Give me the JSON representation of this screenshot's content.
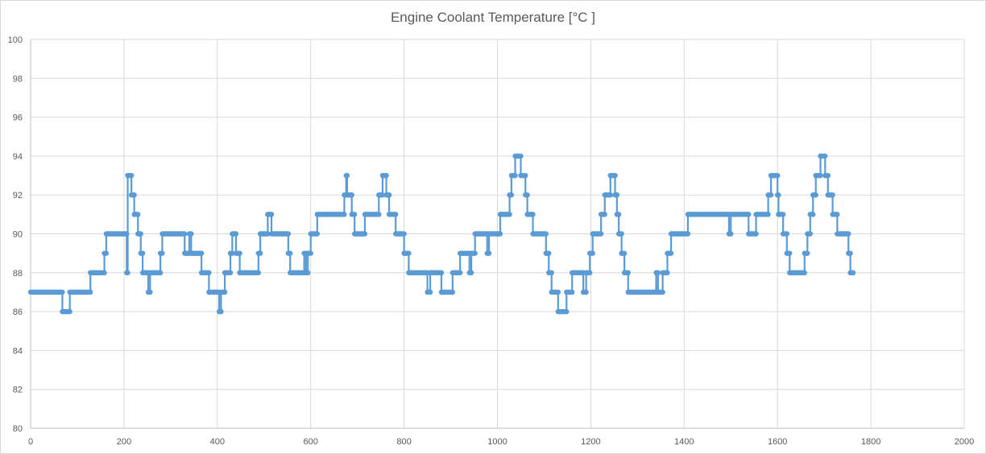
{
  "chart_data": {
    "type": "line",
    "title": "Engine Coolant Temperature [°C ]",
    "xlabel": "",
    "ylabel": "",
    "xlim": [
      0,
      2000
    ],
    "ylim": [
      80,
      100
    ],
    "x_ticks": [
      0,
      200,
      400,
      600,
      800,
      1000,
      1200,
      1400,
      1600,
      1800,
      2000
    ],
    "y_ticks": [
      80,
      82,
      84,
      86,
      88,
      90,
      92,
      94,
      96,
      98,
      100
    ],
    "grid": true,
    "legend": "none",
    "series": [
      {
        "color": "#5b9bd5",
        "marker": "circle",
        "points": [
          [
            0,
            87
          ],
          [
            68,
            87
          ],
          [
            68,
            86
          ],
          [
            84,
            86
          ],
          [
            84,
            87
          ],
          [
            128,
            87
          ],
          [
            128,
            88
          ],
          [
            158,
            88
          ],
          [
            158,
            89
          ],
          [
            162,
            89
          ],
          [
            162,
            90
          ],
          [
            206,
            90
          ],
          [
            206,
            88
          ],
          [
            208,
            88
          ],
          [
            208,
            93
          ],
          [
            216,
            93
          ],
          [
            216,
            92
          ],
          [
            222,
            92
          ],
          [
            222,
            91
          ],
          [
            230,
            91
          ],
          [
            230,
            90
          ],
          [
            236,
            90
          ],
          [
            236,
            89
          ],
          [
            240,
            89
          ],
          [
            240,
            88
          ],
          [
            252,
            88
          ],
          [
            252,
            87
          ],
          [
            256,
            87
          ],
          [
            256,
            88
          ],
          [
            278,
            88
          ],
          [
            278,
            89
          ],
          [
            282,
            89
          ],
          [
            282,
            90
          ],
          [
            330,
            90
          ],
          [
            330,
            89
          ],
          [
            340,
            89
          ],
          [
            340,
            90
          ],
          [
            344,
            90
          ],
          [
            344,
            89
          ],
          [
            366,
            89
          ],
          [
            366,
            88
          ],
          [
            382,
            88
          ],
          [
            382,
            87
          ],
          [
            404,
            87
          ],
          [
            404,
            86
          ],
          [
            408,
            86
          ],
          [
            408,
            87
          ],
          [
            416,
            87
          ],
          [
            416,
            88
          ],
          [
            428,
            88
          ],
          [
            428,
            89
          ],
          [
            432,
            89
          ],
          [
            432,
            90
          ],
          [
            440,
            90
          ],
          [
            440,
            89
          ],
          [
            448,
            89
          ],
          [
            448,
            88
          ],
          [
            488,
            88
          ],
          [
            488,
            89
          ],
          [
            492,
            89
          ],
          [
            492,
            90
          ],
          [
            508,
            90
          ],
          [
            508,
            91
          ],
          [
            516,
            91
          ],
          [
            516,
            90
          ],
          [
            552,
            90
          ],
          [
            552,
            89
          ],
          [
            556,
            89
          ],
          [
            556,
            88
          ],
          [
            586,
            88
          ],
          [
            586,
            89
          ],
          [
            590,
            89
          ],
          [
            590,
            88
          ],
          [
            594,
            88
          ],
          [
            594,
            89
          ],
          [
            600,
            89
          ],
          [
            600,
            90
          ],
          [
            614,
            90
          ],
          [
            614,
            91
          ],
          [
            672,
            91
          ],
          [
            672,
            92
          ],
          [
            676,
            92
          ],
          [
            676,
            93
          ],
          [
            678,
            93
          ],
          [
            678,
            92
          ],
          [
            688,
            92
          ],
          [
            688,
            91
          ],
          [
            694,
            91
          ],
          [
            694,
            90
          ],
          [
            716,
            90
          ],
          [
            716,
            91
          ],
          [
            746,
            91
          ],
          [
            746,
            92
          ],
          [
            754,
            92
          ],
          [
            754,
            93
          ],
          [
            762,
            93
          ],
          [
            762,
            92
          ],
          [
            768,
            92
          ],
          [
            768,
            91
          ],
          [
            782,
            91
          ],
          [
            782,
            90
          ],
          [
            800,
            90
          ],
          [
            800,
            89
          ],
          [
            810,
            89
          ],
          [
            810,
            88
          ],
          [
            850,
            88
          ],
          [
            850,
            87
          ],
          [
            856,
            87
          ],
          [
            856,
            88
          ],
          [
            880,
            88
          ],
          [
            880,
            87
          ],
          [
            904,
            87
          ],
          [
            904,
            88
          ],
          [
            920,
            88
          ],
          [
            920,
            89
          ],
          [
            940,
            89
          ],
          [
            940,
            88
          ],
          [
            944,
            88
          ],
          [
            944,
            89
          ],
          [
            952,
            89
          ],
          [
            952,
            90
          ],
          [
            978,
            90
          ],
          [
            978,
            89
          ],
          [
            982,
            89
          ],
          [
            982,
            90
          ],
          [
            1006,
            90
          ],
          [
            1006,
            91
          ],
          [
            1026,
            91
          ],
          [
            1026,
            92
          ],
          [
            1030,
            92
          ],
          [
            1030,
            93
          ],
          [
            1038,
            93
          ],
          [
            1038,
            94
          ],
          [
            1050,
            94
          ],
          [
            1050,
            93
          ],
          [
            1060,
            93
          ],
          [
            1060,
            92
          ],
          [
            1064,
            92
          ],
          [
            1064,
            91
          ],
          [
            1076,
            91
          ],
          [
            1076,
            90
          ],
          [
            1104,
            90
          ],
          [
            1104,
            89
          ],
          [
            1110,
            89
          ],
          [
            1110,
            88
          ],
          [
            1116,
            88
          ],
          [
            1116,
            87
          ],
          [
            1130,
            87
          ],
          [
            1130,
            86
          ],
          [
            1148,
            86
          ],
          [
            1148,
            87
          ],
          [
            1160,
            87
          ],
          [
            1160,
            88
          ],
          [
            1184,
            88
          ],
          [
            1184,
            87
          ],
          [
            1190,
            87
          ],
          [
            1190,
            88
          ],
          [
            1198,
            88
          ],
          [
            1198,
            89
          ],
          [
            1204,
            89
          ],
          [
            1204,
            90
          ],
          [
            1222,
            90
          ],
          [
            1222,
            91
          ],
          [
            1230,
            91
          ],
          [
            1230,
            92
          ],
          [
            1242,
            92
          ],
          [
            1242,
            93
          ],
          [
            1252,
            93
          ],
          [
            1252,
            92
          ],
          [
            1256,
            92
          ],
          [
            1256,
            91
          ],
          [
            1260,
            91
          ],
          [
            1260,
            90
          ],
          [
            1266,
            90
          ],
          [
            1266,
            89
          ],
          [
            1272,
            89
          ],
          [
            1272,
            88
          ],
          [
            1280,
            88
          ],
          [
            1280,
            87
          ],
          [
            1340,
            87
          ],
          [
            1340,
            88
          ],
          [
            1344,
            88
          ],
          [
            1344,
            87
          ],
          [
            1354,
            87
          ],
          [
            1354,
            88
          ],
          [
            1364,
            88
          ],
          [
            1364,
            89
          ],
          [
            1372,
            89
          ],
          [
            1372,
            90
          ],
          [
            1408,
            90
          ],
          [
            1408,
            91
          ],
          [
            1496,
            91
          ],
          [
            1496,
            90
          ],
          [
            1500,
            90
          ],
          [
            1500,
            91
          ],
          [
            1538,
            91
          ],
          [
            1538,
            90
          ],
          [
            1554,
            90
          ],
          [
            1554,
            91
          ],
          [
            1580,
            91
          ],
          [
            1580,
            92
          ],
          [
            1586,
            92
          ],
          [
            1586,
            93
          ],
          [
            1600,
            93
          ],
          [
            1600,
            92
          ],
          [
            1602,
            92
          ],
          [
            1602,
            91
          ],
          [
            1612,
            91
          ],
          [
            1612,
            90
          ],
          [
            1620,
            90
          ],
          [
            1620,
            89
          ],
          [
            1626,
            89
          ],
          [
            1626,
            88
          ],
          [
            1658,
            88
          ],
          [
            1658,
            89
          ],
          [
            1664,
            89
          ],
          [
            1664,
            90
          ],
          [
            1670,
            90
          ],
          [
            1670,
            91
          ],
          [
            1676,
            91
          ],
          [
            1676,
            92
          ],
          [
            1682,
            92
          ],
          [
            1682,
            93
          ],
          [
            1692,
            93
          ],
          [
            1692,
            94
          ],
          [
            1702,
            94
          ],
          [
            1702,
            93
          ],
          [
            1708,
            93
          ],
          [
            1708,
            92
          ],
          [
            1718,
            92
          ],
          [
            1718,
            91
          ],
          [
            1728,
            91
          ],
          [
            1728,
            90
          ],
          [
            1752,
            90
          ],
          [
            1752,
            89
          ],
          [
            1756,
            89
          ],
          [
            1756,
            88
          ],
          [
            1762,
            88
          ]
        ]
      }
    ]
  }
}
